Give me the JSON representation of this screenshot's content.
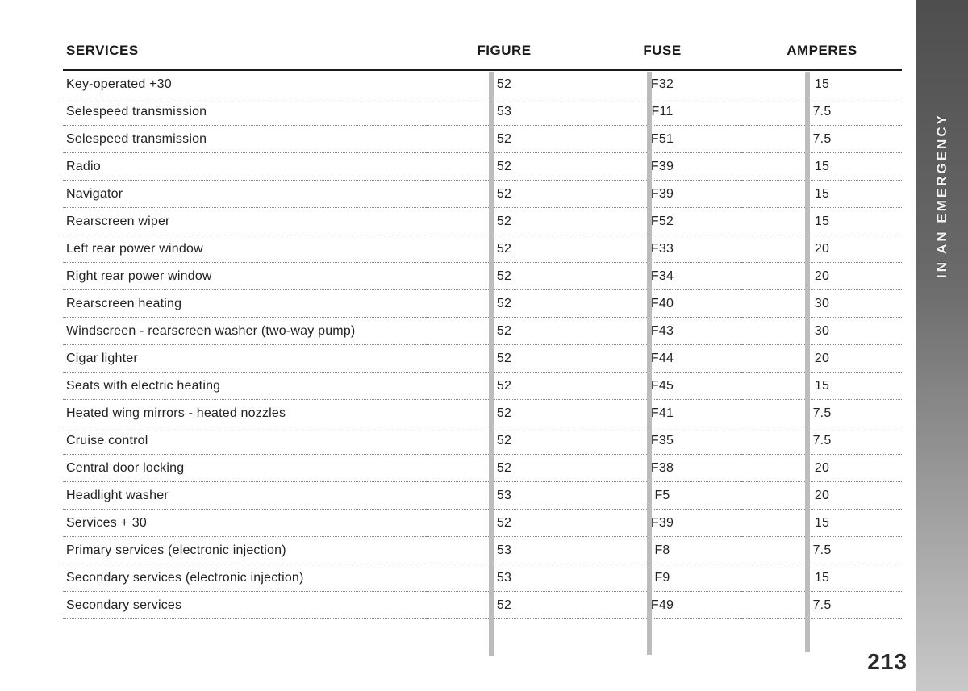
{
  "side_tab": {
    "text": "IN AN EMERGENCY"
  },
  "page_number": "213",
  "table": {
    "headers": {
      "service": "SERVICES",
      "figure": "FIGURE",
      "fuse": "FUSE",
      "amperes": "AMPERES"
    },
    "rows": [
      {
        "service": "Key-operated +30",
        "figure": "52",
        "fuse": "F32",
        "amperes": "15"
      },
      {
        "service": "Selespeed transmission",
        "figure": "53",
        "fuse": "F11",
        "amperes": "7.5"
      },
      {
        "service": "Selespeed transmission",
        "figure": "52",
        "fuse": "F51",
        "amperes": "7.5"
      },
      {
        "service": "Radio",
        "figure": "52",
        "fuse": "F39",
        "amperes": "15"
      },
      {
        "service": "Navigator",
        "figure": "52",
        "fuse": "F39",
        "amperes": "15"
      },
      {
        "service": "Rearscreen wiper",
        "figure": "52",
        "fuse": "F52",
        "amperes": "15"
      },
      {
        "service": "Left rear power window",
        "figure": "52",
        "fuse": "F33",
        "amperes": "20"
      },
      {
        "service": "Right rear power window",
        "figure": "52",
        "fuse": "F34",
        "amperes": "20"
      },
      {
        "service": "Rearscreen heating",
        "figure": "52",
        "fuse": "F40",
        "amperes": "30"
      },
      {
        "service": "Windscreen - rearscreen washer (two-way pump)",
        "figure": "52",
        "fuse": "F43",
        "amperes": "30"
      },
      {
        "service": "Cigar lighter",
        "figure": "52",
        "fuse": "F44",
        "amperes": "20"
      },
      {
        "service": "Seats with electric heating",
        "figure": "52",
        "fuse": "F45",
        "amperes": "15"
      },
      {
        "service": "Heated wing mirrors - heated nozzles",
        "figure": "52",
        "fuse": "F41",
        "amperes": "7.5"
      },
      {
        "service": "Cruise control",
        "figure": "52",
        "fuse": "F35",
        "amperes": "7.5"
      },
      {
        "service": "Central door locking",
        "figure": "52",
        "fuse": "F38",
        "amperes": "20"
      },
      {
        "service": "Headlight washer",
        "figure": "53",
        "fuse": "F5",
        "amperes": "20"
      },
      {
        "service": "Services + 30",
        "figure": "52",
        "fuse": "F39",
        "amperes": "15"
      },
      {
        "service": "Primary services (electronic injection)",
        "figure": "53",
        "fuse": "F8",
        "amperes": "7.5"
      },
      {
        "service": "Secondary services (electronic injection)",
        "figure": "53",
        "fuse": "F9",
        "amperes": "15"
      },
      {
        "service": "Secondary services",
        "figure": "52",
        "fuse": "F49",
        "amperes": "7.5"
      }
    ]
  },
  "colors": {
    "divider": "#bdbdbd",
    "header_rule": "#1a1a1a",
    "row_rule": "#888888",
    "text": "#222222",
    "side_tab_gradient_top": "#4e4e4e",
    "side_tab_gradient_bottom": "#c9c9c9",
    "side_tab_text": "#f2f2f2"
  }
}
